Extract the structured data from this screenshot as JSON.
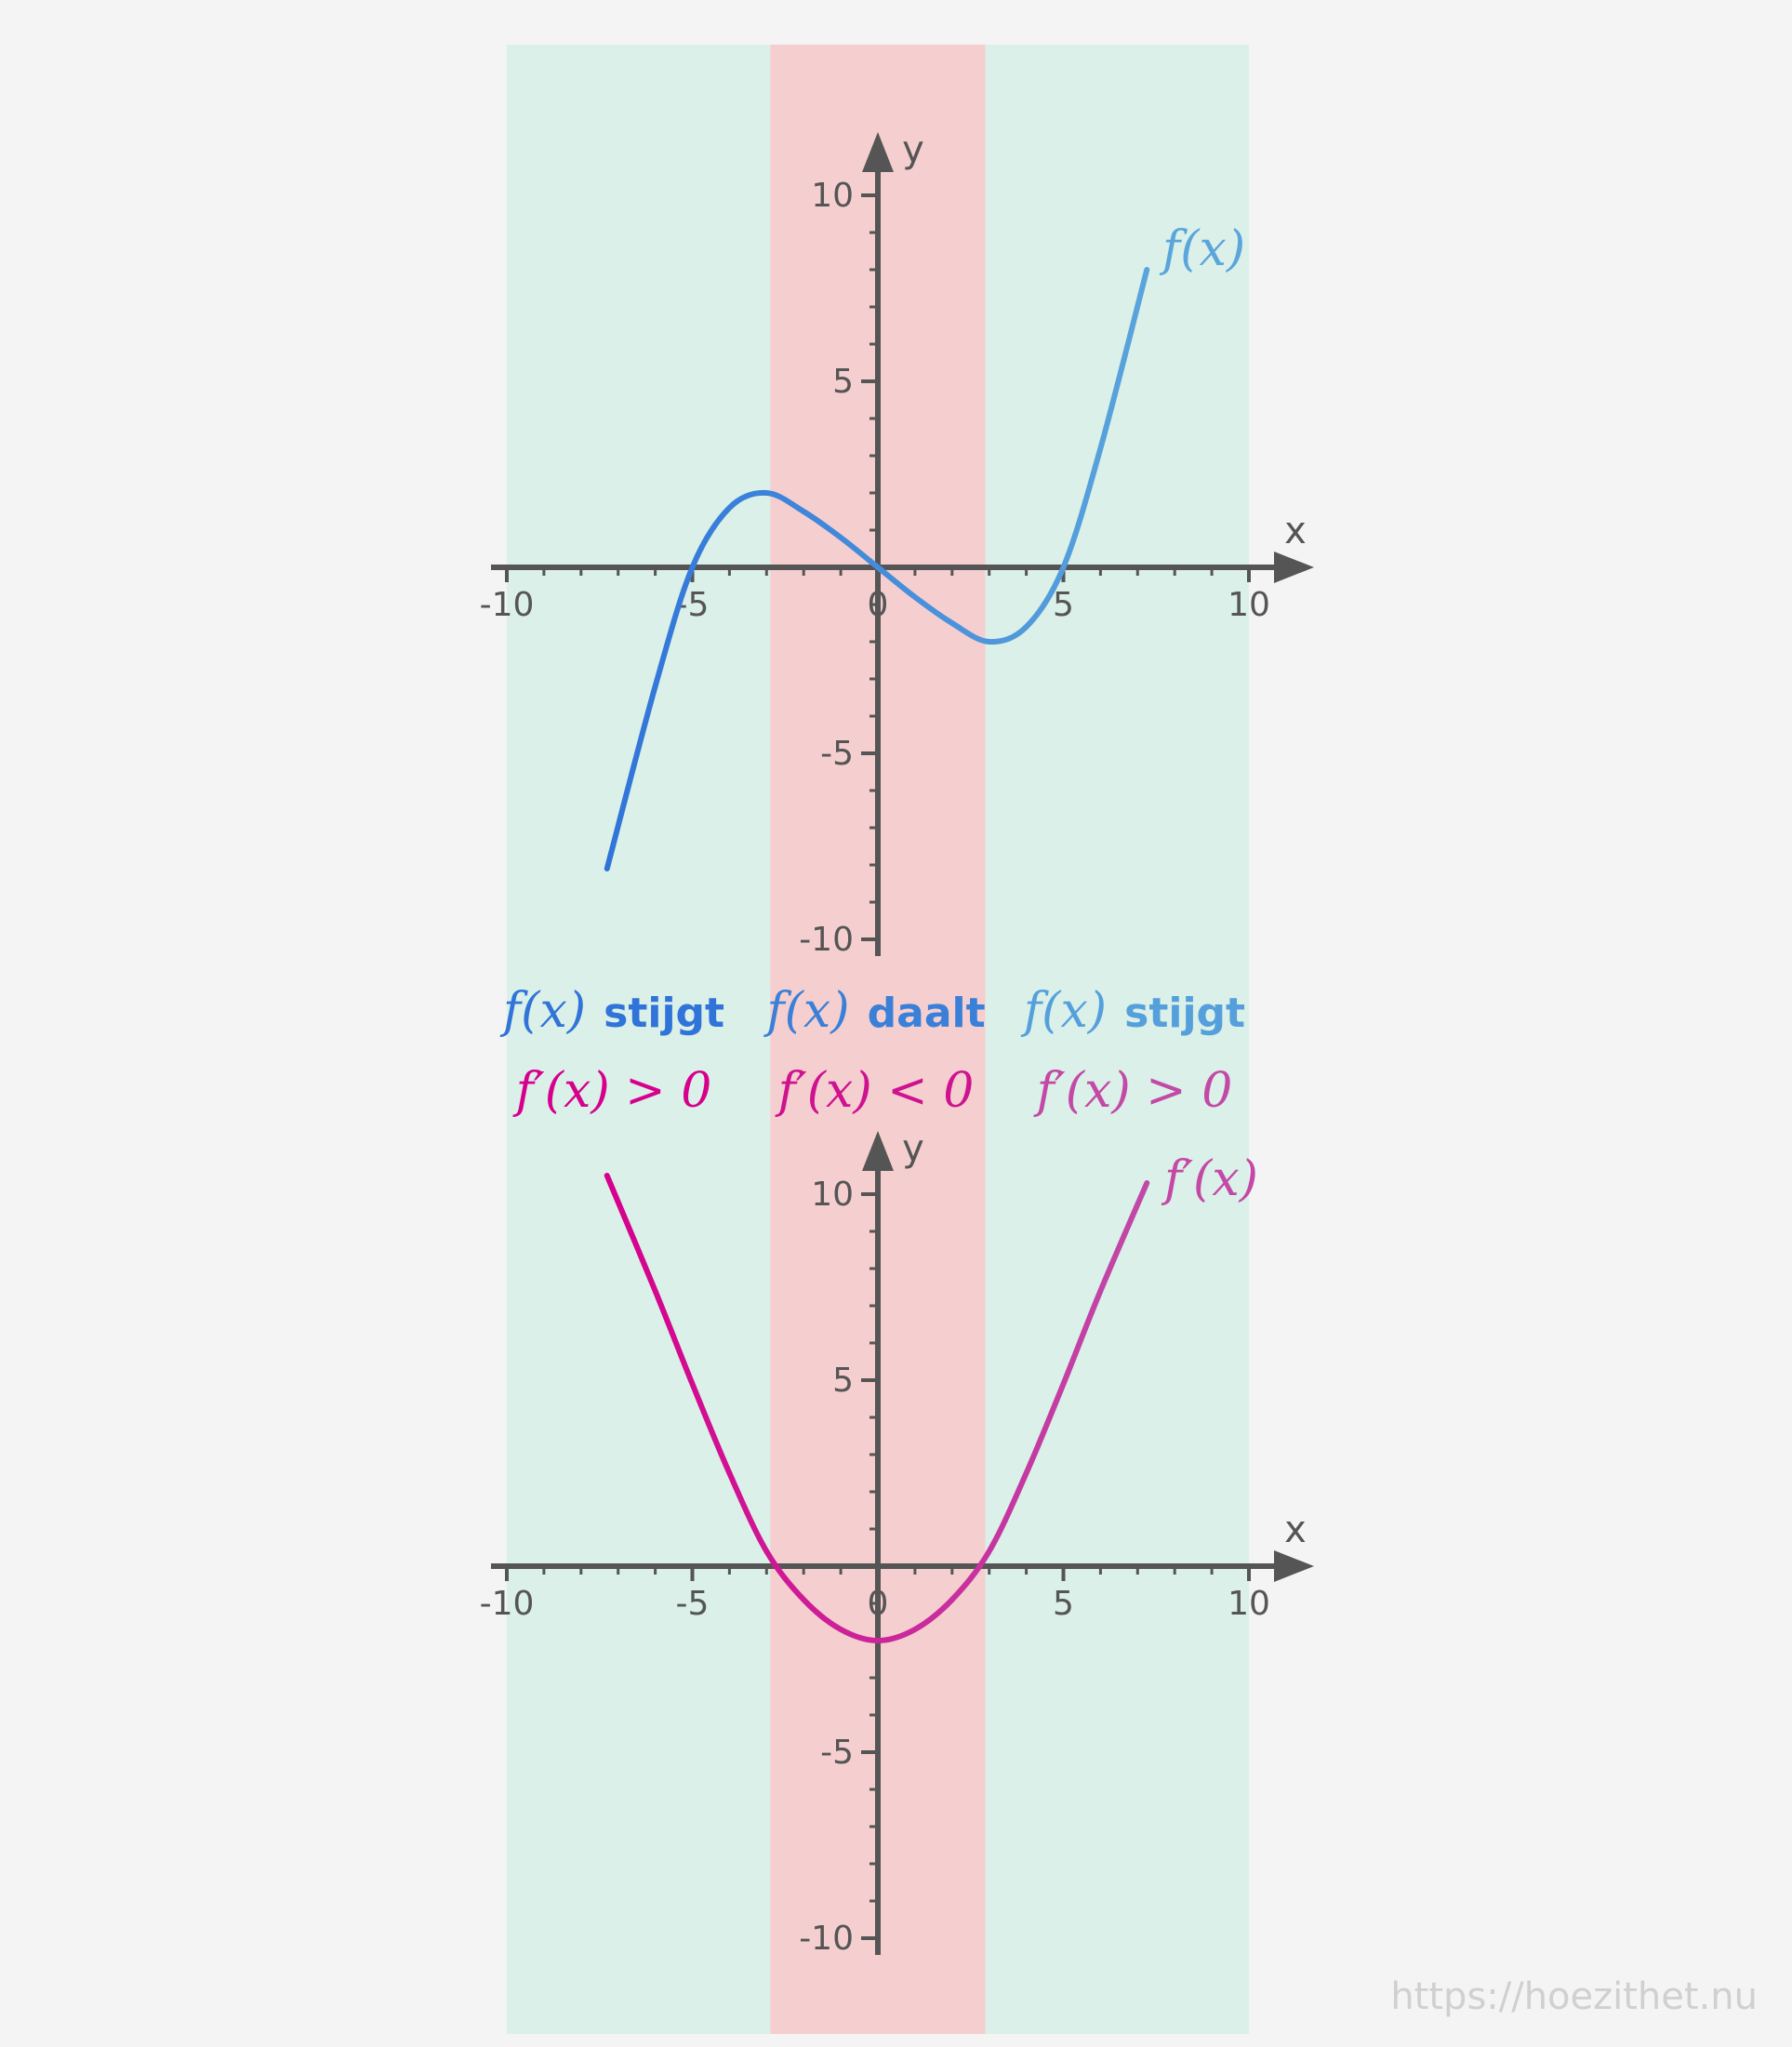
{
  "colors": {
    "background": "#f4f4f4",
    "increasing_region": "#daf0e8",
    "decreasing_region": "#f5cfcf",
    "axis": "#555555",
    "f_curve_start": "#3074d9",
    "f_curve_end": "#5aa5dc",
    "fprime_curve_start": "#d6008c",
    "fprime_curve_end": "#c04aa8"
  },
  "watermark": "https://hoezithet.nu",
  "regions": [
    {
      "x_from": -10,
      "x_to": -2.9,
      "kind": "increasing",
      "color": "#daf0e8"
    },
    {
      "x_from": -2.9,
      "x_to": 2.9,
      "kind": "decreasing",
      "color": "#f5cfcf"
    },
    {
      "x_from": 2.9,
      "x_to": 10,
      "kind": "increasing",
      "color": "#daf0e8"
    }
  ],
  "annotations": [
    {
      "f_text": "f(x)",
      "word": "stijgt",
      "deriv_text": "f′(x) > 0",
      "color_f": "#3074d9",
      "color_d": "#d6008c"
    },
    {
      "f_text": "f(x)",
      "word": "daalt",
      "deriv_text": "f′(x) < 0",
      "color_f": "#3a80d8",
      "color_d": "#cf1290"
    },
    {
      "f_text": "f(x)",
      "word": "stijgt",
      "deriv_text": "f′(x) > 0",
      "color_f": "#55a0dc",
      "color_d": "#c448a6"
    }
  ],
  "chart_data": [
    {
      "type": "line",
      "xlabel": "x",
      "ylabel": "y",
      "xlim": [
        -10,
        10
      ],
      "ylim": [
        -10,
        10
      ],
      "x_ticks": [
        -10,
        -5,
        0,
        5,
        10
      ],
      "y_ticks": [
        -10,
        -5,
        5,
        10
      ],
      "x_tick_labels": [
        "-10",
        "-5",
        "0",
        "5",
        "10"
      ],
      "y_tick_labels": [
        "-10",
        "-5",
        "5",
        "10"
      ],
      "series": [
        {
          "name": "f(x)",
          "x": [
            -7.3,
            -6,
            -5,
            -4,
            -3,
            -2,
            -1,
            0,
            1,
            2,
            3,
            4,
            5,
            6,
            7.25
          ],
          "y": [
            -8.1,
            -3.2,
            0,
            1.6,
            2.0,
            1.5,
            0.8,
            0,
            -0.8,
            -1.5,
            -2.0,
            -1.6,
            0,
            3.2,
            8.0
          ]
        }
      ]
    },
    {
      "type": "line",
      "xlabel": "x",
      "ylabel": "y",
      "xlim": [
        -10,
        10
      ],
      "ylim": [
        -10,
        10
      ],
      "x_ticks": [
        -10,
        -5,
        0,
        5,
        10
      ],
      "y_ticks": [
        -10,
        -5,
        5,
        10
      ],
      "x_tick_labels": [
        "-10",
        "-5",
        "0",
        "5",
        "10"
      ],
      "y_tick_labels": [
        "-10",
        "-5",
        "5",
        "10"
      ],
      "series": [
        {
          "name": "f′(x)",
          "x": [
            -7.3,
            -6,
            -5,
            -4,
            -3,
            -2,
            -1,
            0,
            1,
            2,
            3,
            4,
            5,
            6,
            7.25
          ],
          "y": [
            10.5,
            7.4,
            4.9,
            2.5,
            0.4,
            -0.9,
            -1.7,
            -2.0,
            -1.7,
            -0.9,
            0.4,
            2.5,
            4.9,
            7.4,
            10.3
          ]
        }
      ]
    }
  ]
}
